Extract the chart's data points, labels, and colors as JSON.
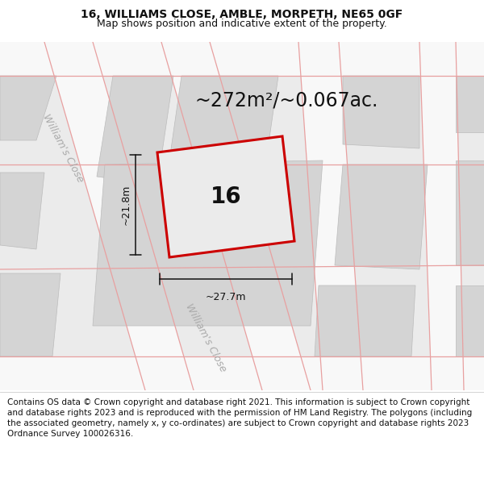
{
  "title_line1": "16, WILLIAMS CLOSE, AMBLE, MORPETH, NE65 0GF",
  "title_line2": "Map shows position and indicative extent of the property.",
  "area_text": "~272m²/~0.067ac.",
  "plot_number": "16",
  "dim_height": "~21.8m",
  "dim_width": "~27.7m",
  "street_label_top": "William's Close",
  "street_label_bottom": "William's Close",
  "footer_text": "Contains OS data © Crown copyright and database right 2021. This information is subject to Crown copyright and database rights 2023 and is reproduced with the permission of HM Land Registry. The polygons (including the associated geometry, namely x, y co-ordinates) are subject to Crown copyright and database rights 2023 Ordnance Survey 100026316.",
  "bg_color": "#ebebeb",
  "map_bg": "#ebebeb",
  "building_color": "#d4d4d4",
  "road_color": "#f8f8f8",
  "plot_outline_color": "#cc0000",
  "plot_fill_color": "#ebebeb",
  "pink": "#e8a0a0",
  "dim_color": "#111111",
  "text_color": "#111111",
  "street_color": "#aaaaaa",
  "footer_color": "#111111",
  "title_fontsize": 10,
  "subtitle_fontsize": 9,
  "area_fontsize": 17,
  "plot_num_fontsize": 20,
  "dim_fontsize": 9,
  "street_fontsize": 9,
  "footer_fontsize": 7.5,
  "fig_width": 6.0,
  "fig_height": 6.25,
  "dpi": 100
}
